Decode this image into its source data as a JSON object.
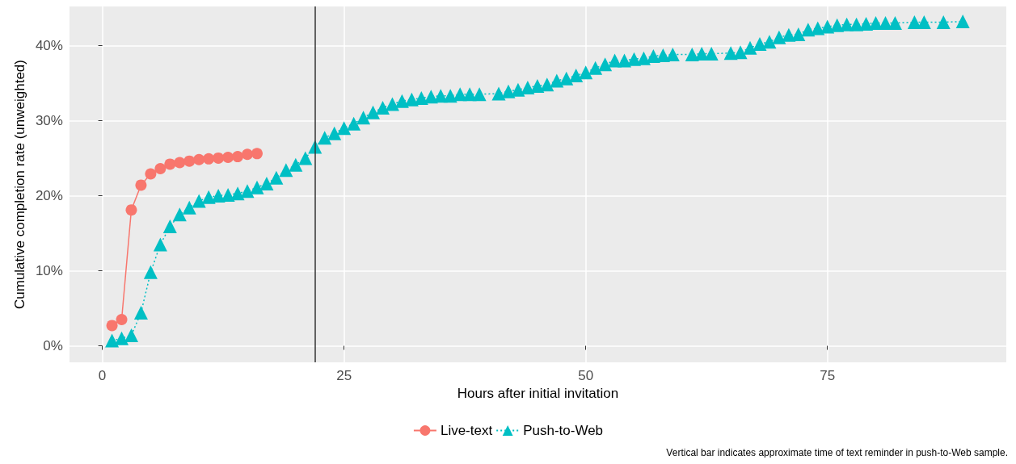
{
  "chart_data": {
    "type": "line",
    "xlabel": "Hours after initial invitation",
    "ylabel": "Cumulative completion rate (unweighted)",
    "xlim": [
      -3.4,
      93.5
    ],
    "xticks": [
      0,
      25,
      50,
      75
    ],
    "ylim": [
      -2.2,
      45.2
    ],
    "yticks": [
      {
        "value": 0,
        "label": "0%"
      },
      {
        "value": 10,
        "label": "10%"
      },
      {
        "value": 20,
        "label": "20%"
      },
      {
        "value": 30,
        "label": "30%"
      },
      {
        "value": 40,
        "label": "40%"
      }
    ],
    "grid": true,
    "legend": "bottom",
    "ref_lines": [
      {
        "axis": "x",
        "value": 22,
        "color": "#333333"
      }
    ],
    "annotations": [
      "Vertical bar indicates approximate time of text reminder in push-to-Web sample."
    ],
    "series": [
      {
        "name": "Live-text",
        "color": "#f8766d",
        "marker": "circle",
        "line_style": "solid",
        "x": [
          1,
          2,
          3,
          4,
          5,
          6,
          7,
          8,
          9,
          10,
          11,
          12,
          13,
          14,
          15,
          16
        ],
        "values": [
          2.7,
          3.5,
          18.1,
          21.4,
          22.9,
          23.6,
          24.2,
          24.4,
          24.6,
          24.8,
          24.9,
          25.0,
          25.1,
          25.2,
          25.5,
          25.6
        ]
      },
      {
        "name": "Push-to-Web",
        "color": "#00bfc4",
        "marker": "triangle",
        "line_style": "dotted",
        "x": [
          1,
          2,
          3,
          4,
          5,
          6,
          7,
          8,
          9,
          10,
          11,
          12,
          13,
          14,
          15,
          16,
          17,
          18,
          19,
          20,
          21,
          22,
          23,
          24,
          25,
          26,
          27,
          28,
          29,
          30,
          31,
          32,
          33,
          34,
          35,
          36,
          37,
          38,
          39,
          41,
          42,
          43,
          44,
          45,
          46,
          47,
          48,
          49,
          50,
          51,
          52,
          53,
          54,
          55,
          56,
          57,
          58,
          59,
          61,
          62,
          63,
          65,
          66,
          67,
          68,
          69,
          70,
          71,
          72,
          73,
          74,
          75,
          76,
          77,
          78,
          79,
          80,
          81,
          82,
          84,
          85,
          87,
          89
        ],
        "values": [
          0.7,
          1.0,
          1.4,
          4.4,
          9.8,
          13.5,
          15.9,
          17.5,
          18.4,
          19.3,
          19.8,
          20.0,
          20.1,
          20.3,
          20.6,
          21.1,
          21.6,
          22.4,
          23.4,
          24.1,
          25.0,
          26.5,
          27.7,
          28.3,
          29.0,
          29.6,
          30.4,
          31.1,
          31.7,
          32.2,
          32.6,
          32.8,
          33.0,
          33.2,
          33.3,
          33.3,
          33.5,
          33.5,
          33.5,
          33.6,
          33.9,
          34.1,
          34.4,
          34.6,
          34.8,
          35.3,
          35.6,
          36.0,
          36.4,
          37.0,
          37.5,
          38.0,
          38.0,
          38.2,
          38.3,
          38.6,
          38.7,
          38.8,
          38.8,
          38.9,
          38.9,
          39.0,
          39.1,
          39.7,
          40.2,
          40.5,
          41.1,
          41.4,
          41.5,
          42.1,
          42.3,
          42.5,
          42.7,
          42.8,
          42.8,
          42.9,
          43.0,
          43.0,
          43.0,
          43.1,
          43.1,
          43.1,
          43.2
        ]
      }
    ]
  }
}
